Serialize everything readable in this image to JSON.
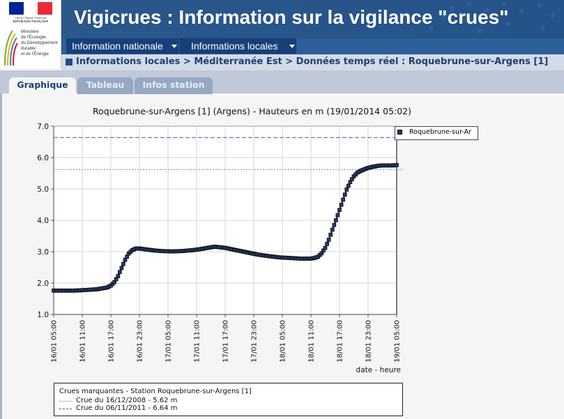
{
  "header": {
    "logo": {
      "flag_colors": [
        "#002395",
        "#ffffff",
        "#ed2939"
      ],
      "rf_motto": "Liberté • Égalité • Fraternité",
      "rf_name": "RÉPUBLIQUE FRANÇAISE",
      "ministry_lines": [
        "Ministère",
        "de l'Écologie,",
        "du Développement",
        "durable",
        "et de l'Énergie"
      ]
    },
    "title": "Vigicrues : Information sur la vigilance \"crues\""
  },
  "nav": {
    "items": [
      {
        "label": "Information nationale"
      },
      {
        "label": "Informations locales"
      }
    ]
  },
  "breadcrumb": "Informations locales > Méditerranée Est > Données temps réel : Roquebrune-sur-Argens [1]",
  "tabs": [
    {
      "label": "Graphique",
      "active": true
    },
    {
      "label": "Tableau",
      "active": false
    },
    {
      "label": "Infos station",
      "active": false
    }
  ],
  "chart_data": {
    "type": "line",
    "title": "Roquebrune-sur-Argens [1] (Argens) - Hauteurs en m (19/01/2014 05:02)",
    "xlabel": "date - heure",
    "ylabel": "",
    "ylim": [
      1.0,
      7.0
    ],
    "yticks": [
      "1.0",
      "2.0",
      "3.0",
      "4.0",
      "5.0",
      "6.0",
      "7.0"
    ],
    "xticks": [
      "16/01 05:00",
      "16/01 11:00",
      "16/01 17:00",
      "16/01 23:00",
      "17/01 05:00",
      "17/01 11:00",
      "17/01 17:00",
      "17/01 23:00",
      "18/01 05:00",
      "18/01 11:00",
      "18/01 17:00",
      "18/01 23:00",
      "19/01 05:00"
    ],
    "grid": true,
    "legend_position": "top-right",
    "series": [
      {
        "name": "Roquebrune-sur-Ar",
        "color": "#2a3b66",
        "x_hours": [
          0,
          3,
          6,
          9,
          12,
          15,
          16,
          17,
          18,
          19,
          20,
          21,
          22,
          23,
          24,
          26,
          28,
          30,
          33,
          36,
          39,
          42,
          45,
          48,
          51,
          54,
          57,
          60,
          63,
          66,
          69,
          72,
          73,
          74,
          75,
          76,
          77,
          78,
          79,
          80,
          81,
          82,
          83,
          84,
          85,
          86,
          87,
          88,
          89,
          90,
          91,
          92,
          93,
          94,
          95,
          96
        ],
        "values": [
          1.76,
          1.76,
          1.76,
          1.78,
          1.8,
          1.86,
          1.92,
          2.03,
          2.22,
          2.48,
          2.74,
          2.94,
          3.05,
          3.1,
          3.1,
          3.07,
          3.04,
          3.02,
          3.01,
          3.02,
          3.05,
          3.1,
          3.16,
          3.12,
          3.05,
          2.98,
          2.91,
          2.86,
          2.82,
          2.8,
          2.78,
          2.78,
          2.8,
          2.84,
          2.95,
          3.12,
          3.38,
          3.7,
          4.0,
          4.33,
          4.66,
          4.98,
          5.22,
          5.4,
          5.52,
          5.58,
          5.63,
          5.67,
          5.7,
          5.72,
          5.74,
          5.75,
          5.75,
          5.75,
          5.75,
          5.76
        ]
      }
    ],
    "reference_lines": [
      {
        "label": "Crue du 16/12/2008 - 5.62 m",
        "value": 5.62,
        "color": "#3f9ab4",
        "dash": "dot"
      },
      {
        "label": "Crue du 06/11/2011 - 6.64 m",
        "value": 6.64,
        "color": "#4a4fb4",
        "dash": "dash"
      }
    ],
    "reference_box_title": "Crues marquantes - Station Roquebrune-sur-Argens [1]"
  }
}
